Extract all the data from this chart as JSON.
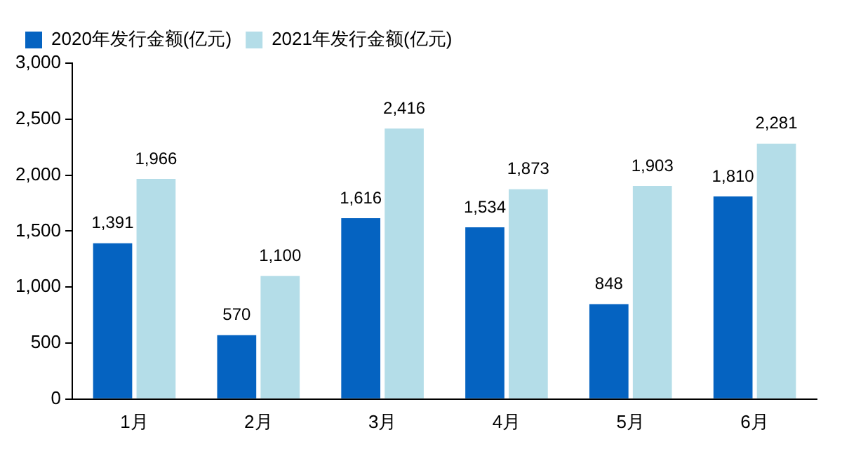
{
  "chart_data": {
    "type": "bar",
    "categories": [
      "1月",
      "2月",
      "3月",
      "4月",
      "5月",
      "6月"
    ],
    "series": [
      {
        "name": "2020年发行金额(亿元)",
        "color": "#0563c1",
        "values": [
          1391,
          570,
          1616,
          1534,
          848,
          1810
        ],
        "value_labels": [
          "1,391",
          "570",
          "1,616",
          "1,534",
          "848",
          "1,810"
        ]
      },
      {
        "name": "2021年发行金额(亿元)",
        "color": "#b4dde8",
        "values": [
          1966,
          1100,
          2416,
          1873,
          1903,
          2281
        ],
        "value_labels": [
          "1,966",
          "1,100",
          "2,416",
          "1,873",
          "1,903",
          "2,281"
        ]
      }
    ],
    "ylim": [
      0,
      3000
    ],
    "yticks": [
      {
        "value": 0,
        "label": "0"
      },
      {
        "value": 500,
        "label": "500"
      },
      {
        "value": 1000,
        "label": "1,000"
      },
      {
        "value": 1500,
        "label": "1,500"
      },
      {
        "value": 2000,
        "label": "2,000"
      },
      {
        "value": 2500,
        "label": "2,500"
      },
      {
        "value": 3000,
        "label": "3,000"
      }
    ],
    "grid": false,
    "legend": "top left"
  }
}
